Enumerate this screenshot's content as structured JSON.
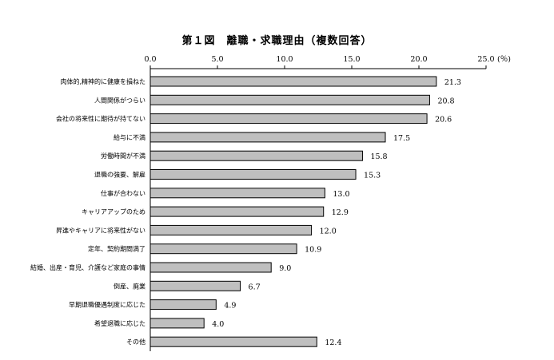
{
  "chart_data": {
    "type": "bar",
    "orientation": "horizontal",
    "title": "第１図　離職・求職理由（複数回答）",
    "unit_label": "(％)",
    "xlim": [
      0,
      25
    ],
    "ticks": [
      "0.0",
      "5.0",
      "10.0",
      "15.0",
      "20.0",
      "25.0"
    ],
    "tick_values": [
      0,
      5,
      10,
      15,
      20,
      25
    ],
    "grid": false,
    "categories": [
      "肉体的,精神的に健康を損ねた",
      "人間関係がつらい",
      "会社の将来性に期待が持てない",
      "給与に不満",
      "労働時間が不満",
      "退職の強要、解雇",
      "仕事が合わない",
      "キャリアアップのため",
      "昇進やキャリアに将来性がない",
      "定年、契約期間満了",
      "結婚、出産・育児、介護など家庭の事情",
      "倒産、廃業",
      "早期退職優遇制度に応じた",
      "希望退職に応じた",
      "その他"
    ],
    "values": [
      21.3,
      20.8,
      20.6,
      17.5,
      15.8,
      15.3,
      13.0,
      12.9,
      12.0,
      10.9,
      9.0,
      6.7,
      4.9,
      4.0,
      12.4
    ],
    "value_labels": [
      "21.3",
      "20.8",
      "20.6",
      "17.5",
      "15.8",
      "15.3",
      "13.0",
      "12.9",
      "12.0",
      "10.9",
      "9.0",
      "6.7",
      "4.9",
      "4.0",
      "12.4"
    ],
    "colors": {
      "bar_fill": "#bfbfbf",
      "bar_stroke": "#000000",
      "axis": "#000000"
    }
  }
}
